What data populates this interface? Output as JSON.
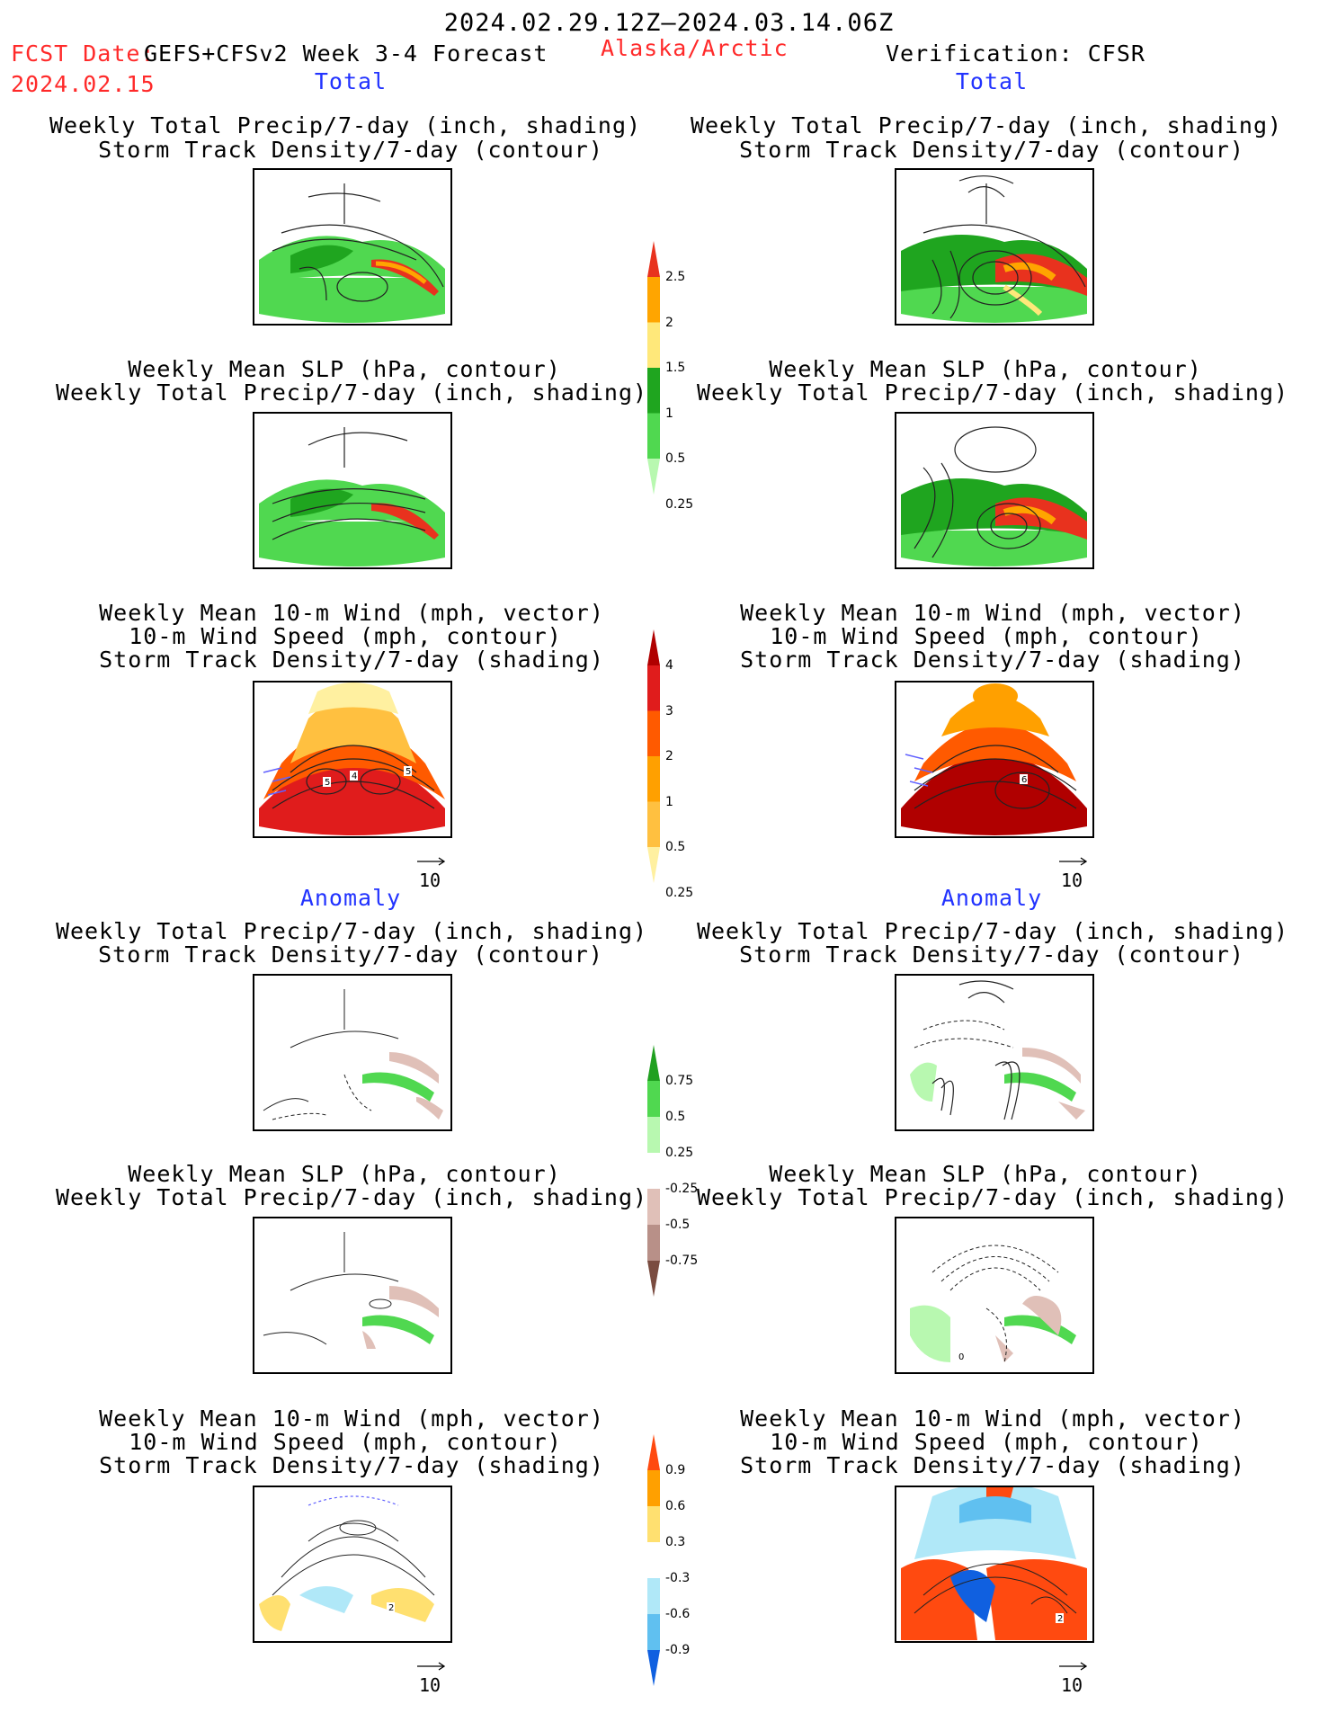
{
  "header": {
    "date_range": "2024.02.29.12Z–2024.03.14.06Z",
    "fcst_date_label": "FCST Date:",
    "fcst_date_value": "2024.02.15",
    "model": "GEFS+CFSv2 Week 3-4 Forecast",
    "region": "Alaska/Arctic",
    "verification": "Verification: CFSR"
  },
  "sections": {
    "total_left": "Total",
    "total_right": "Total",
    "anomaly_left": "Anomaly",
    "anomaly_right": "Anomaly"
  },
  "panels": {
    "p1": [
      "Weekly Total Precip/7-day (inch, shading)",
      "Storm Track Density/7-day (contour)"
    ],
    "p2": [
      "Weekly Mean SLP (hPa, contour)",
      "Weekly Total Precip/7-day (inch, shading)"
    ],
    "p3": [
      "Weekly Mean 10-m Wind (mph, vector)",
      "10-m Wind Speed (mph, contour)",
      "Storm Track Density/7-day (shading)"
    ]
  },
  "vector_ref": "10",
  "colorbars": {
    "precip_total": {
      "labels": [
        "2.5",
        "2",
        "1.5",
        "1",
        "0.5",
        "0.25"
      ],
      "colors": [
        "#e8321e",
        "#ffa500",
        "#ffe87a",
        "#1fa51f",
        "#50d850",
        "#b8f8b0"
      ]
    },
    "storm_total": {
      "labels": [
        "4",
        "3",
        "2",
        "1",
        "0.5",
        "0.25"
      ],
      "colors": [
        "#b00000",
        "#e01c1c",
        "#ff5a00",
        "#ffa000",
        "#ffc040",
        "#fff0a0"
      ]
    },
    "precip_anom": {
      "labels": [
        "0.75",
        "0.5",
        "0.25",
        "-0.25",
        "-0.5",
        "-0.75"
      ],
      "colors": [
        "#20a020",
        "#50d850",
        "#b8f8b0",
        "#ffffff",
        "#e0c0b8",
        "#b89088",
        "#7a4c40"
      ]
    },
    "storm_anom": {
      "labels": [
        "0.9",
        "0.6",
        "0.3",
        "-0.3",
        "-0.6",
        "-0.9"
      ],
      "colors": [
        "#ff4a10",
        "#ffa000",
        "#ffe070",
        "#ffffff",
        "#b0e8f8",
        "#60c0f0",
        "#1060e0"
      ]
    }
  },
  "panel_labels": {
    "total_wind_left": [
      "5",
      "4",
      "5"
    ],
    "total_wind_right": [
      "6"
    ],
    "anom_wind_left": [
      "2"
    ],
    "anom_wind_right": [
      "2"
    ],
    "anom_slp_right": [
      "0"
    ]
  }
}
